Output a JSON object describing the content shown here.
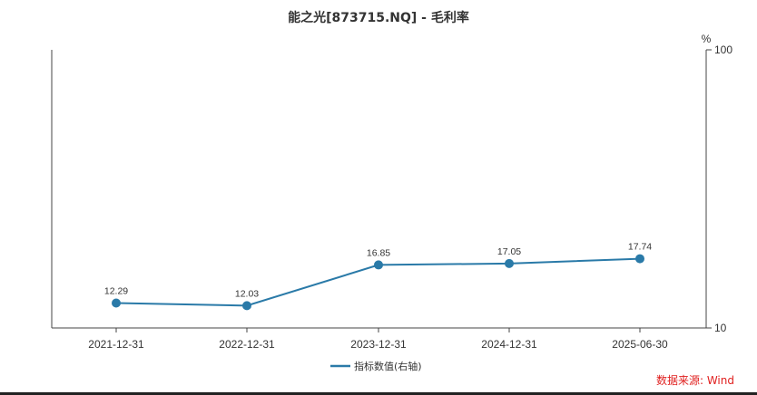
{
  "chart_data": {
    "type": "line",
    "title": "能之光[873715.NQ] - 毛利率",
    "categories": [
      "2021-12-31",
      "2022-12-31",
      "2023-12-31",
      "2024-12-31",
      "2025-06-30"
    ],
    "series": [
      {
        "name": "指标数值(右轴)",
        "values": [
          12.29,
          12.03,
          16.85,
          17.05,
          17.74
        ],
        "color": "#2a7aa8"
      }
    ],
    "y_axis": {
      "side": "right",
      "unit": "%",
      "scale": "log",
      "ylim": [
        10,
        100
      ],
      "ticks": [
        "100",
        "10"
      ]
    },
    "data_labels": [
      "12.29",
      "12.03",
      "16.85",
      "17.05",
      "17.74"
    ],
    "grid": false,
    "legend": {
      "position": "bottom-center"
    }
  },
  "source": "数据来源: Wind"
}
